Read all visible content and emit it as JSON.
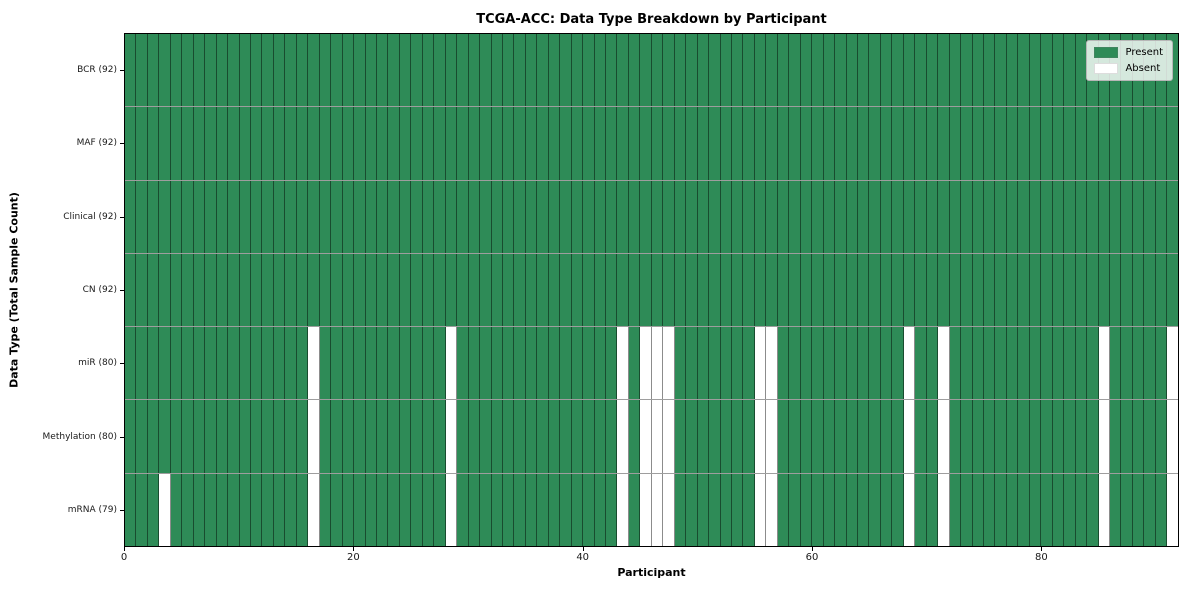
{
  "colors": {
    "present": "#2e8b57",
    "absent": "#ffffff",
    "figure_background": "#ffffff",
    "grid_line": "rgba(0,0,0,0.45)"
  },
  "chart_data": {
    "type": "heatmap",
    "title": "TCGA-ACC: Data Type Breakdown by Participant",
    "xlabel": "Participant",
    "ylabel": "Data Type (Total Sample Count)",
    "n_participants": 92,
    "x_ticks": [
      0,
      20,
      40,
      60,
      80
    ],
    "x_range": [
      0,
      92
    ],
    "grid": true,
    "rows": [
      {
        "label": "BCR (92)",
        "present_count": 92,
        "absent_participants": []
      },
      {
        "label": "MAF (92)",
        "present_count": 92,
        "absent_participants": []
      },
      {
        "label": "Clinical (92)",
        "present_count": 92,
        "absent_participants": []
      },
      {
        "label": "CN (92)",
        "present_count": 92,
        "absent_participants": []
      },
      {
        "label": "miR (80)",
        "present_count": 80,
        "absent_participants": [
          16,
          28,
          43,
          45,
          46,
          47,
          55,
          56,
          68,
          71,
          85,
          91
        ]
      },
      {
        "label": "Methylation (80)",
        "present_count": 80,
        "absent_participants": [
          16,
          28,
          43,
          45,
          46,
          47,
          55,
          56,
          68,
          71,
          85,
          91
        ]
      },
      {
        "label": "mRNA (79)",
        "present_count": 79,
        "absent_participants": [
          3,
          16,
          28,
          43,
          45,
          46,
          47,
          55,
          56,
          68,
          71,
          85,
          91
        ]
      }
    ],
    "legend": {
      "position": "upper right",
      "entries": [
        {
          "label": "Present",
          "color": "#2e8b57"
        },
        {
          "label": "Absent",
          "color": "#ffffff"
        }
      ]
    }
  }
}
